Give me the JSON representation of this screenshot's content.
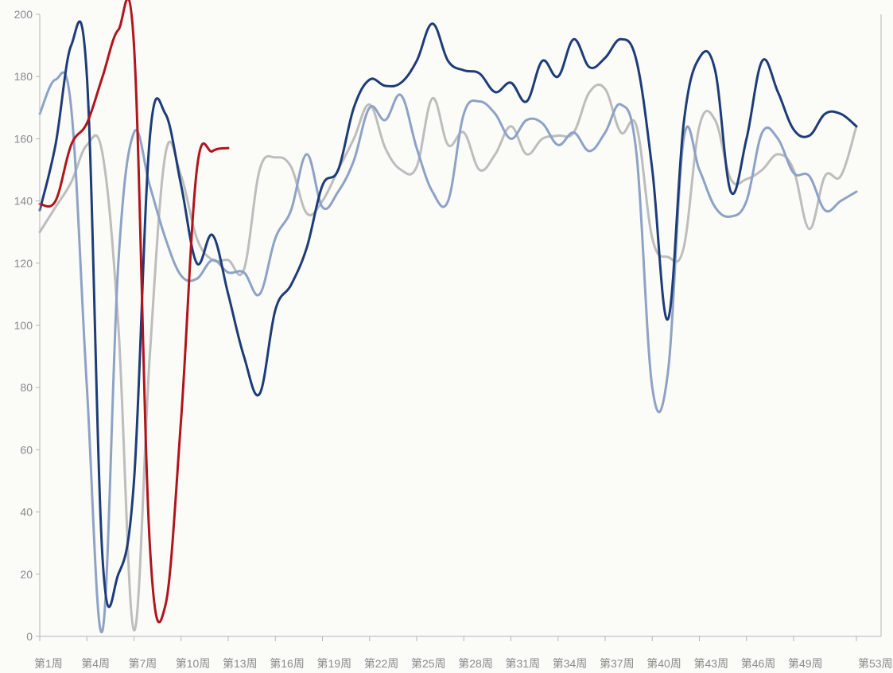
{
  "chart_data": {
    "type": "line",
    "title": "",
    "xlabel": "",
    "ylabel": "",
    "ylim": [
      0,
      200
    ],
    "y_ticks": [
      0,
      20,
      40,
      60,
      80,
      100,
      120,
      140,
      160,
      180,
      200
    ],
    "y_tick_labels": [
      "0",
      "20",
      "40",
      "60",
      "80",
      "100",
      "120",
      "140",
      "160",
      "180",
      "200"
    ],
    "x_range": [
      1,
      53
    ],
    "x_ticks": [
      1,
      4,
      7,
      10,
      13,
      16,
      19,
      22,
      25,
      28,
      31,
      34,
      37,
      40,
      43,
      46,
      49,
      53
    ],
    "x_tick_labels": [
      "第1周",
      "第4周",
      "第7周",
      "第10周",
      "第13周",
      "第16周",
      "第19周",
      "第22周",
      "第25周",
      "第28周",
      "第31周",
      "第34周",
      "第37周",
      "第40周",
      "第43周",
      "第46周",
      "第49周",
      "第53周"
    ],
    "grid": false,
    "legend": "none",
    "series": [
      {
        "color": "#bdbdbd",
        "width": 3,
        "points": [
          [
            1,
            130
          ],
          [
            2,
            138
          ],
          [
            3,
            146
          ],
          [
            4,
            158
          ],
          [
            5,
            155
          ],
          [
            6,
            100
          ],
          [
            7,
            2
          ],
          [
            8,
            90
          ],
          [
            9,
            155
          ],
          [
            10,
            148
          ],
          [
            11,
            128
          ],
          [
            12,
            121
          ],
          [
            13,
            121
          ],
          [
            14,
            118
          ],
          [
            15,
            150
          ],
          [
            16,
            154
          ],
          [
            17,
            151
          ],
          [
            18,
            136
          ],
          [
            19,
            140
          ],
          [
            20,
            150
          ],
          [
            21,
            160
          ],
          [
            22,
            171
          ],
          [
            23,
            157
          ],
          [
            24,
            150
          ],
          [
            25,
            151
          ],
          [
            26,
            173
          ],
          [
            27,
            158
          ],
          [
            28,
            162
          ],
          [
            29,
            150
          ],
          [
            30,
            155
          ],
          [
            31,
            164
          ],
          [
            32,
            155
          ],
          [
            33,
            160
          ],
          [
            34,
            161
          ],
          [
            35,
            162
          ],
          [
            36,
            175
          ],
          [
            37,
            176
          ],
          [
            38,
            162
          ],
          [
            39,
            164
          ],
          [
            40,
            128
          ],
          [
            41,
            122
          ],
          [
            42,
            125
          ],
          [
            43,
            164
          ],
          [
            44,
            166
          ],
          [
            45,
            147
          ],
          [
            46,
            147
          ],
          [
            47,
            150
          ],
          [
            48,
            155
          ],
          [
            49,
            150
          ],
          [
            50,
            131
          ],
          [
            51,
            148
          ],
          [
            52,
            148
          ],
          [
            53,
            164
          ]
        ]
      },
      {
        "color": "#8ea2c6",
        "width": 3,
        "points": [
          [
            1,
            168
          ],
          [
            2,
            179
          ],
          [
            3,
            170
          ],
          [
            4,
            80
          ],
          [
            5,
            2
          ],
          [
            6,
            120
          ],
          [
            7,
            162
          ],
          [
            8,
            145
          ],
          [
            9,
            128
          ],
          [
            10,
            116
          ],
          [
            11,
            115
          ],
          [
            12,
            121
          ],
          [
            13,
            117
          ],
          [
            14,
            117
          ],
          [
            15,
            110
          ],
          [
            16,
            128
          ],
          [
            17,
            137
          ],
          [
            18,
            155
          ],
          [
            19,
            138
          ],
          [
            20,
            143
          ],
          [
            21,
            153
          ],
          [
            22,
            170
          ],
          [
            23,
            166
          ],
          [
            24,
            174
          ],
          [
            25,
            157
          ],
          [
            26,
            143
          ],
          [
            27,
            140
          ],
          [
            28,
            168
          ],
          [
            29,
            172
          ],
          [
            30,
            168
          ],
          [
            31,
            160
          ],
          [
            32,
            166
          ],
          [
            33,
            165
          ],
          [
            34,
            158
          ],
          [
            35,
            162
          ],
          [
            36,
            156
          ],
          [
            37,
            162
          ],
          [
            38,
            171
          ],
          [
            39,
            155
          ],
          [
            40,
            80
          ],
          [
            41,
            85
          ],
          [
            42,
            160
          ],
          [
            43,
            150
          ],
          [
            44,
            138
          ],
          [
            45,
            135
          ],
          [
            46,
            140
          ],
          [
            47,
            162
          ],
          [
            48,
            160
          ],
          [
            49,
            149
          ],
          [
            50,
            148
          ],
          [
            51,
            137
          ],
          [
            52,
            140
          ],
          [
            53,
            143
          ]
        ]
      },
      {
        "color": "#1d3c78",
        "width": 3,
        "points": [
          [
            1,
            137
          ],
          [
            2,
            158
          ],
          [
            3,
            190
          ],
          [
            4,
            180
          ],
          [
            5,
            25
          ],
          [
            6,
            20
          ],
          [
            7,
            50
          ],
          [
            8,
            160
          ],
          [
            9,
            168
          ],
          [
            10,
            145
          ],
          [
            11,
            120
          ],
          [
            12,
            129
          ],
          [
            13,
            110
          ],
          [
            14,
            90
          ],
          [
            15,
            78
          ],
          [
            16,
            105
          ],
          [
            17,
            113
          ],
          [
            18,
            125
          ],
          [
            19,
            145
          ],
          [
            20,
            150
          ],
          [
            21,
            170
          ],
          [
            22,
            179
          ],
          [
            23,
            177
          ],
          [
            24,
            178
          ],
          [
            25,
            185
          ],
          [
            26,
            197
          ],
          [
            27,
            185
          ],
          [
            28,
            182
          ],
          [
            29,
            181
          ],
          [
            30,
            175
          ],
          [
            31,
            178
          ],
          [
            32,
            172
          ],
          [
            33,
            185
          ],
          [
            34,
            180
          ],
          [
            35,
            192
          ],
          [
            36,
            183
          ],
          [
            37,
            186
          ],
          [
            38,
            192
          ],
          [
            39,
            185
          ],
          [
            40,
            150
          ],
          [
            41,
            102
          ],
          [
            42,
            165
          ],
          [
            43,
            186
          ],
          [
            44,
            182
          ],
          [
            45,
            143
          ],
          [
            46,
            160
          ],
          [
            47,
            185
          ],
          [
            48,
            175
          ],
          [
            49,
            163
          ],
          [
            50,
            161
          ],
          [
            51,
            168
          ],
          [
            52,
            168
          ],
          [
            53,
            164
          ]
        ]
      },
      {
        "color": "#b0141d",
        "width": 3,
        "points": [
          [
            1,
            139
          ],
          [
            2,
            140
          ],
          [
            3,
            158
          ],
          [
            4,
            165
          ],
          [
            5,
            180
          ],
          [
            6,
            195
          ],
          [
            7,
            190
          ],
          [
            8,
            30
          ],
          [
            9,
            10
          ],
          [
            10,
            70
          ],
          [
            11,
            150
          ],
          [
            12,
            156
          ],
          [
            13,
            157
          ]
        ]
      }
    ]
  }
}
